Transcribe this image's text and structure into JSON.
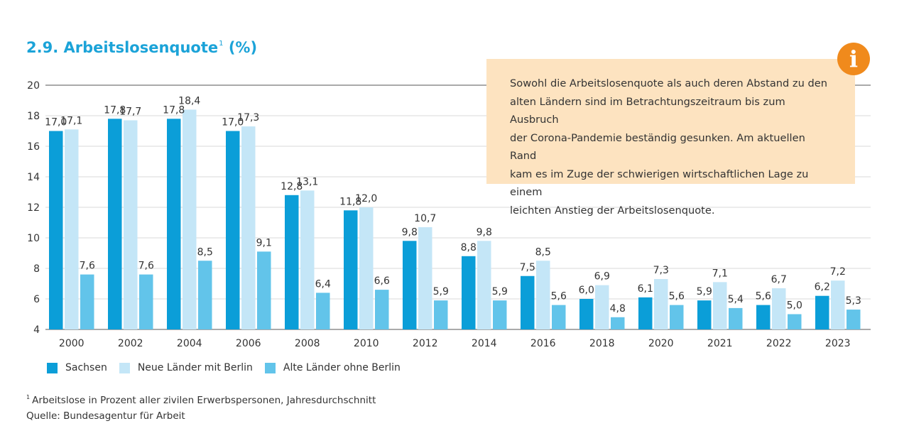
{
  "title": {
    "text": "2.9. Arbeitslosenquote",
    "sup": "1",
    "unit": "(%)"
  },
  "info_box": {
    "icon": "info-icon",
    "lines": [
      "Sowohl die Arbeitslosenquote als auch deren Abstand zu den",
      "alten Ländern sind im Betrachtungszeitraum bis zum Ausbruch",
      "der Corona-Pandemie beständig gesunken. Am aktuellen Rand",
      "kam es im Zuge der schwierigen wirtschaftlichen Lage zu einem",
      "leichten Anstieg der Arbeitslosenquote."
    ]
  },
  "footnote": {
    "mark": "1",
    "text": "Arbeitslose in Prozent aller zivilen Erwerbspersonen, Jahresdurchschnitt",
    "source": "Quelle: Bundesagentur für Arbeit"
  },
  "colors": {
    "title": "#1ba3d8",
    "box": "#fde3c0",
    "icon": "#f08a1c"
  },
  "chart_data": {
    "type": "bar",
    "categories": [
      "2000",
      "2002",
      "2004",
      "2006",
      "2008",
      "2010",
      "2012",
      "2014",
      "2016",
      "2018",
      "2020",
      "2021",
      "2022",
      "2023"
    ],
    "series": [
      {
        "name": "Sachsen",
        "color": "#0b9ed8",
        "values": [
          17.0,
          17.8,
          17.8,
          17.0,
          12.8,
          11.8,
          9.8,
          8.8,
          7.5,
          6.0,
          6.1,
          5.9,
          5.6,
          6.2
        ],
        "labels": [
          "17,0",
          "17,8",
          "17,8",
          "17,0",
          "12,8",
          "11,8",
          "9,8",
          "8,8",
          "7,5",
          "6,0",
          "6,1",
          "5,9",
          "5,6",
          "6,2"
        ]
      },
      {
        "name": "Neue Länder mit Berlin",
        "color": "#c4e6f7",
        "values": [
          17.1,
          17.7,
          18.4,
          17.3,
          13.1,
          12.0,
          10.7,
          9.8,
          8.5,
          6.9,
          7.3,
          7.1,
          6.7,
          7.2
        ],
        "labels": [
          "17,1",
          "17,7",
          "18,4",
          "17,3",
          "13,1",
          "12,0",
          "10,7",
          "9,8",
          "8,5",
          "6,9",
          "7,3",
          "7,1",
          "6,7",
          "7,2"
        ]
      },
      {
        "name": "Alte Länder ohne Berlin",
        "color": "#62c4ea",
        "values": [
          7.6,
          7.6,
          8.5,
          9.1,
          6.4,
          6.6,
          5.9,
          5.9,
          5.6,
          4.8,
          5.6,
          5.4,
          5.0,
          5.3
        ],
        "labels": [
          "7,6",
          "7,6",
          "8,5",
          "9,1",
          "6,4",
          "6,6",
          "5,9",
          "5,9",
          "5,6",
          "4,8",
          "5,6",
          "5,4",
          "5,0",
          "5,3"
        ]
      }
    ],
    "ylim": [
      4,
      20
    ],
    "yticks": [
      "4",
      "6",
      "8",
      "10",
      "12",
      "14",
      "16",
      "18",
      "20"
    ],
    "grid": true,
    "legend_position": "bottom-left"
  }
}
